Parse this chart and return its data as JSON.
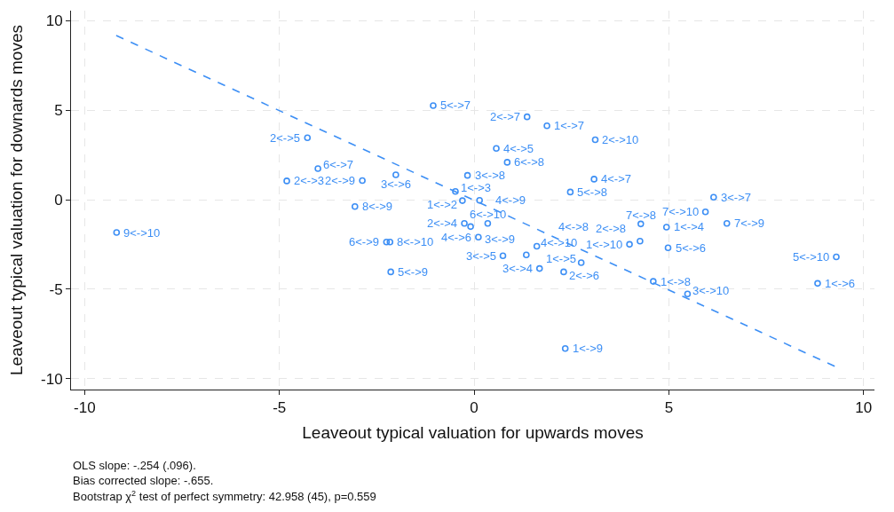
{
  "chart_data": {
    "type": "scatter",
    "xlabel": "Leaveout typical valuation for upwards moves",
    "ylabel": "Leaveout typical valuation for downards moves",
    "xlim": [
      -10.35,
      10.28
    ],
    "xticks": [
      -10,
      -5,
      0,
      5,
      10
    ],
    "ylim": [
      -10.6,
      10.56
    ],
    "yticks": [
      -10,
      -5,
      0,
      5,
      10
    ],
    "grid": true,
    "series": [
      {
        "type": "scatter",
        "marker": "circle",
        "color": "#3d8ff5",
        "x": [
          -0.3,
          -0.48,
          4.94,
          2.75,
          8.82,
          1.87,
          4.6,
          2.34,
          3.99,
          -4.81,
          -0.25,
          -4.28,
          2.3,
          1.36,
          4.26,
          -2.87,
          3.11,
          1.68,
          0.74,
          -2.01,
          6.15,
          -0.17,
          -0.09,
          5.48,
          0.57,
          0.11,
          3.08,
          1.61,
          0.14,
          1.34,
          4.98,
          -1.05,
          2.47,
          -2.14,
          9.3,
          -4.01,
          0.85,
          -2.25,
          0.35,
          4.28,
          6.49,
          5.94,
          -3.06,
          -2.16,
          -9.18
        ],
        "values": [
          -0.05,
          0.46,
          -1.53,
          -3.51,
          -4.67,
          4.13,
          -4.56,
          -8.31,
          -2.49,
          1.05,
          -1.32,
          3.46,
          -4.03,
          4.63,
          -2.31,
          1.07,
          3.35,
          -3.84,
          -3.13,
          1.39,
          0.14,
          1.36,
          -1.5,
          -5.26,
          2.87,
          -2.09,
          1.15,
          -2.6,
          -0.03,
          -3.08,
          -2.68,
          5.26,
          0.43,
          -4.03,
          -3.19,
          1.74,
          2.09,
          -2.36,
          -1.32,
          -1.35,
          -1.32,
          -0.68,
          -0.38,
          -2.36,
          -1.83
        ]
      },
      {
        "type": "line",
        "line_style": "dashed",
        "color": "#3d8ff5",
        "x": [
          -9.19,
          9.31
        ],
        "values": [
          9.17,
          -9.35
        ]
      }
    ],
    "annotations": [
      {
        "text": "1<->2",
        "x": -0.3,
        "y": -0.05
      },
      {
        "text": "1<->3",
        "x": -0.48,
        "y": 0.46
      },
      {
        "text": "1<->4",
        "x": 4.94,
        "y": -1.53
      },
      {
        "text": "1<->5",
        "x": 2.75,
        "y": -3.51
      },
      {
        "text": "1<->6",
        "x": 8.82,
        "y": -4.67
      },
      {
        "text": "1<->7",
        "x": 1.87,
        "y": 4.13
      },
      {
        "text": "1<->8",
        "x": 4.6,
        "y": -4.56
      },
      {
        "text": "1<->9",
        "x": 2.34,
        "y": -8.31
      },
      {
        "text": "1<->10",
        "x": 3.99,
        "y": -2.49
      },
      {
        "text": "2<->3",
        "x": -4.81,
        "y": 1.05
      },
      {
        "text": "2<->4",
        "x": -0.25,
        "y": -1.32
      },
      {
        "text": "2<->5",
        "x": -4.28,
        "y": 3.46
      },
      {
        "text": "2<->6",
        "x": 2.3,
        "y": -4.03
      },
      {
        "text": "2<->7",
        "x": 1.36,
        "y": 4.63
      },
      {
        "text": "2<->8",
        "x": 4.26,
        "y": -2.31
      },
      {
        "text": "2<->9",
        "x": -2.87,
        "y": 1.07
      },
      {
        "text": "2<->10",
        "x": 3.11,
        "y": 3.35
      },
      {
        "text": "3<->4",
        "x": 1.68,
        "y": -3.84
      },
      {
        "text": "3<->5",
        "x": 0.74,
        "y": -3.13
      },
      {
        "text": "3<->6",
        "x": -2.01,
        "y": 1.39
      },
      {
        "text": "3<->7",
        "x": 6.15,
        "y": 0.14
      },
      {
        "text": "3<->8",
        "x": -0.17,
        "y": 1.36
      },
      {
        "text": "3<->9",
        "x": -0.09,
        "y": -1.5
      },
      {
        "text": "3<->10",
        "x": 5.48,
        "y": -5.26
      },
      {
        "text": "4<->5",
        "x": 0.57,
        "y": 2.87
      },
      {
        "text": "4<->6",
        "x": 0.11,
        "y": -2.09
      },
      {
        "text": "4<->7",
        "x": 3.08,
        "y": 1.15
      },
      {
        "text": "4<->8",
        "x": 1.61,
        "y": -2.6
      },
      {
        "text": "4<->9",
        "x": 0.14,
        "y": -0.03
      },
      {
        "text": "4<->10",
        "x": 1.34,
        "y": -3.08
      },
      {
        "text": "5<->6",
        "x": 4.98,
        "y": -2.68
      },
      {
        "text": "5<->7",
        "x": -1.05,
        "y": 5.26
      },
      {
        "text": "5<->8",
        "x": 2.47,
        "y": 0.43
      },
      {
        "text": "5<->9",
        "x": -2.14,
        "y": -4.03
      },
      {
        "text": "5<->10",
        "x": 9.3,
        "y": -3.19
      },
      {
        "text": "6<->7",
        "x": -4.01,
        "y": 1.74
      },
      {
        "text": "6<->8",
        "x": 0.85,
        "y": 2.09
      },
      {
        "text": "6<->9",
        "x": -2.25,
        "y": -2.36
      },
      {
        "text": "6<->10",
        "x": 0.35,
        "y": -1.32
      },
      {
        "text": "7<->8",
        "x": 4.28,
        "y": -1.35
      },
      {
        "text": "7<->9",
        "x": 6.49,
        "y": -1.32
      },
      {
        "text": "7<->10",
        "x": 5.94,
        "y": -0.68
      },
      {
        "text": "8<->9",
        "x": -3.06,
        "y": -0.38
      },
      {
        "text": "8<->10",
        "x": -2.16,
        "y": -2.36
      },
      {
        "text": "9<->10",
        "x": -9.18,
        "y": -1.83
      },
      "OLS slope: -.254 (.096).",
      "Bias corrected slope: -.655.",
      "Bootstrap χ$^{2}$ test of perfect symmetry: 42.958 (45), p=0.559"
    ]
  }
}
